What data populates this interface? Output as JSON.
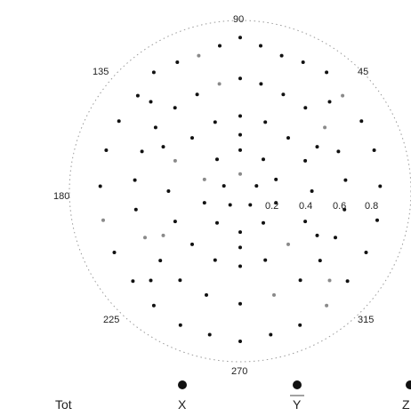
{
  "chart_data": {
    "type": "scatter",
    "coordinate_system": "polar",
    "angle_labels": [
      "90",
      "45",
      "135",
      "180",
      "225",
      "270",
      "315"
    ],
    "radial_tick_labels": [
      "0.2",
      "0.4",
      "0.6",
      "0.8"
    ],
    "radial_range": [
      0,
      1.0
    ],
    "grid": false,
    "outer_circle": "dotted",
    "legend": {
      "placement": "bottom",
      "items": [
        {
          "label": "Tot",
          "marker": "none"
        },
        {
          "label": "X",
          "marker": "filled-circle"
        },
        {
          "label": "Y",
          "marker": "filled-circle"
        },
        {
          "label": "Z",
          "marker": "filled-circle"
        }
      ]
    },
    "colors": {
      "marker": "#111111",
      "faint_marker": "#8a8a8a",
      "circle": "#9a9a9a"
    },
    "series": [
      {
        "points_polar": [
          {
            "r": 0.9,
            "angle_deg": 90
          },
          {
            "r": 0.86,
            "angle_deg": 98
          },
          {
            "r": 0.86,
            "angle_deg": 82
          },
          {
            "r": 0.83,
            "angle_deg": 107
          },
          {
            "r": 0.83,
            "angle_deg": 73
          },
          {
            "r": 0.84,
            "angle_deg": 116
          },
          {
            "r": 0.84,
            "angle_deg": 64
          },
          {
            "r": 0.86,
            "angle_deg": 126
          },
          {
            "r": 0.86,
            "angle_deg": 54
          },
          {
            "r": 0.82,
            "angle_deg": 137
          },
          {
            "r": 0.82,
            "angle_deg": 43
          },
          {
            "r": 0.82,
            "angle_deg": 150
          },
          {
            "r": 0.82,
            "angle_deg": 30
          },
          {
            "r": 0.82,
            "angle_deg": 163
          },
          {
            "r": 0.82,
            "angle_deg": 17
          },
          {
            "r": 0.82,
            "angle_deg": 178
          },
          {
            "r": 0.82,
            "angle_deg": 2
          },
          {
            "r": 0.82,
            "angle_deg": 192
          },
          {
            "r": 0.82,
            "angle_deg": 348
          },
          {
            "r": 0.82,
            "angle_deg": 206
          },
          {
            "r": 0.82,
            "angle_deg": 334
          },
          {
            "r": 0.82,
            "angle_deg": 220
          },
          {
            "r": 0.82,
            "angle_deg": 320
          },
          {
            "r": 0.84,
            "angle_deg": 233
          },
          {
            "r": 0.84,
            "angle_deg": 307
          },
          {
            "r": 0.86,
            "angle_deg": 246
          },
          {
            "r": 0.86,
            "angle_deg": 294
          },
          {
            "r": 0.86,
            "angle_deg": 258
          },
          {
            "r": 0.86,
            "angle_deg": 282
          },
          {
            "r": 0.88,
            "angle_deg": 270
          },
          {
            "r": 0.66,
            "angle_deg": 90
          },
          {
            "r": 0.64,
            "angle_deg": 101
          },
          {
            "r": 0.64,
            "angle_deg": 79
          },
          {
            "r": 0.62,
            "angle_deg": 114
          },
          {
            "r": 0.62,
            "angle_deg": 66
          },
          {
            "r": 0.62,
            "angle_deg": 128
          },
          {
            "r": 0.62,
            "angle_deg": 52
          },
          {
            "r": 0.62,
            "angle_deg": 143
          },
          {
            "r": 0.62,
            "angle_deg": 37
          },
          {
            "r": 0.62,
            "angle_deg": 158
          },
          {
            "r": 0.62,
            "angle_deg": 22
          },
          {
            "r": 0.62,
            "angle_deg": 174
          },
          {
            "r": 0.62,
            "angle_deg": 6
          },
          {
            "r": 0.62,
            "angle_deg": 190
          },
          {
            "r": 0.62,
            "angle_deg": 350
          },
          {
            "r": 0.62,
            "angle_deg": 206
          },
          {
            "r": 0.62,
            "angle_deg": 334
          },
          {
            "r": 0.62,
            "angle_deg": 221
          },
          {
            "r": 0.62,
            "angle_deg": 319
          },
          {
            "r": 0.63,
            "angle_deg": 236
          },
          {
            "r": 0.63,
            "angle_deg": 304
          },
          {
            "r": 0.64,
            "angle_deg": 252
          },
          {
            "r": 0.64,
            "angle_deg": 288
          },
          {
            "r": 0.66,
            "angle_deg": 270
          },
          {
            "r": 0.44,
            "angle_deg": 90
          },
          {
            "r": 0.43,
            "angle_deg": 110
          },
          {
            "r": 0.43,
            "angle_deg": 70
          },
          {
            "r": 0.42,
            "angle_deg": 132
          },
          {
            "r": 0.42,
            "angle_deg": 48
          },
          {
            "r": 0.42,
            "angle_deg": 155
          },
          {
            "r": 0.42,
            "angle_deg": 25
          },
          {
            "r": 0.42,
            "angle_deg": 180
          },
          {
            "r": 0.42,
            "angle_deg": 0
          },
          {
            "r": 0.42,
            "angle_deg": 205
          },
          {
            "r": 0.42,
            "angle_deg": 335
          },
          {
            "r": 0.42,
            "angle_deg": 228
          },
          {
            "r": 0.42,
            "angle_deg": 312
          },
          {
            "r": 0.43,
            "angle_deg": 250
          },
          {
            "r": 0.43,
            "angle_deg": 290
          },
          {
            "r": 0.44,
            "angle_deg": 270
          },
          {
            "r": 0.24,
            "angle_deg": 90
          },
          {
            "r": 0.23,
            "angle_deg": 126
          },
          {
            "r": 0.23,
            "angle_deg": 54
          },
          {
            "r": 0.22,
            "angle_deg": 162
          },
          {
            "r": 0.22,
            "angle_deg": 18
          },
          {
            "r": 0.22,
            "angle_deg": 198
          },
          {
            "r": 0.22,
            "angle_deg": 342
          },
          {
            "r": 0.23,
            "angle_deg": 234
          },
          {
            "r": 0.23,
            "angle_deg": 306
          },
          {
            "r": 0.24,
            "angle_deg": 270
          },
          {
            "r": 0.1,
            "angle_deg": 90
          },
          {
            "r": 0.1,
            "angle_deg": 162
          },
          {
            "r": 0.1,
            "angle_deg": 18
          },
          {
            "r": 0.1,
            "angle_deg": 234
          },
          {
            "r": 0.1,
            "angle_deg": 306
          },
          {
            "r": 0.52,
            "angle_deg": 30
          },
          {
            "r": 0.52,
            "angle_deg": 150
          },
          {
            "r": 0.52,
            "angle_deg": 210
          },
          {
            "r": 0.52,
            "angle_deg": 330
          },
          {
            "r": 0.33,
            "angle_deg": 90
          },
          {
            "r": 0.33,
            "angle_deg": 270
          },
          {
            "r": 0.74,
            "angle_deg": 45
          },
          {
            "r": 0.74,
            "angle_deg": 135
          },
          {
            "r": 0.74,
            "angle_deg": 225
          },
          {
            "r": 0.74,
            "angle_deg": 315
          }
        ]
      }
    ]
  }
}
